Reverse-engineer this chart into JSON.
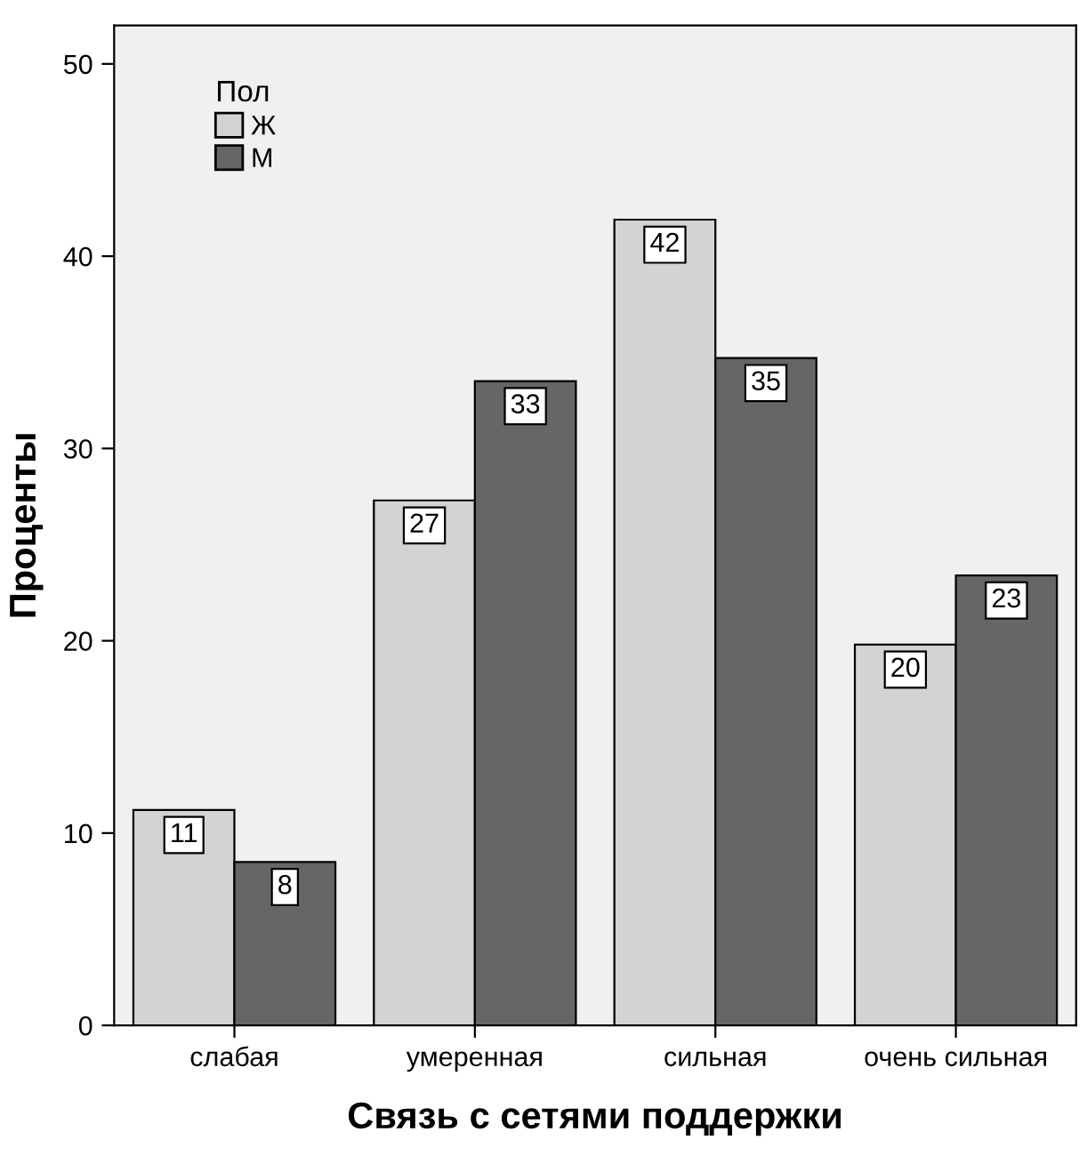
{
  "chart_data": {
    "type": "bar",
    "xlabel": "Связь с сетями поддержки",
    "ylabel": "Проценты",
    "legend_title": "Пол",
    "categories": [
      "слабая",
      "умеренная",
      "сильная",
      "очень сильная"
    ],
    "series": [
      {
        "name": "Ж",
        "color": "#d3d3d3",
        "values": [
          11.2,
          27.3,
          41.9,
          19.8
        ],
        "value_labels": [
          "11",
          "27",
          "42",
          "20"
        ]
      },
      {
        "name": "М",
        "color": "#666666",
        "values": [
          8.5,
          33.5,
          34.7,
          23.4
        ],
        "value_labels": [
          "8",
          "33",
          "35",
          "23"
        ]
      }
    ],
    "ylim": [
      0,
      52
    ],
    "yticks": [
      0,
      10,
      20,
      30,
      40,
      50
    ],
    "grid": false,
    "legend": "top left"
  }
}
